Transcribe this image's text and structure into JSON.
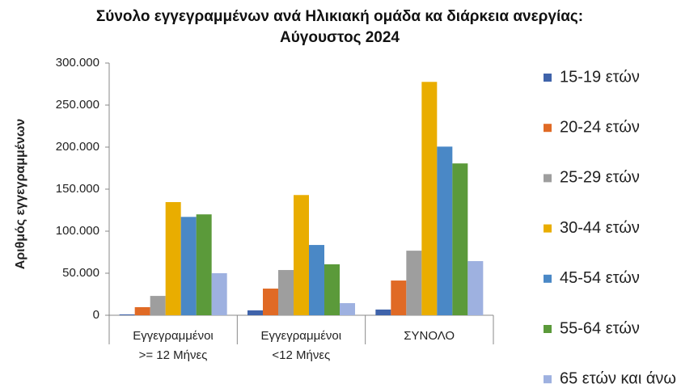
{
  "chart_data": {
    "type": "bar",
    "title": "Σύνολο εγγεγραμμένων  ανά Ηλικιακή ομάδα κα διάρκεια ανεργίας:\nΑύγουστος  2024",
    "y_label": "Αριθμός εγγεγραμμένων",
    "categories": [
      "Εγγεγραμμένοι\n>= 12 Μήνες",
      "Εγγεγραμμένοι\n<12 Μήνες",
      "ΣΥΝΟΛΟ"
    ],
    "series": [
      {
        "name": "15-19 ετών",
        "color": "#3f63aa",
        "values": [
          1000,
          5800,
          6800
        ]
      },
      {
        "name": "20-24 ετών",
        "color": "#e06a25",
        "values": [
          9600,
          31700,
          41300
        ]
      },
      {
        "name": "25-29 ετών",
        "color": "#9e9e9e",
        "values": [
          23000,
          53800,
          76800
        ]
      },
      {
        "name": "30-44 ετών",
        "color": "#e9ad00",
        "values": [
          134600,
          143000,
          277600
        ]
      },
      {
        "name": "45-54 ετών",
        "color": "#4a88c6",
        "values": [
          117000,
          83600,
          200600
        ]
      },
      {
        "name": "55-64 ετών",
        "color": "#5b9a3a",
        "values": [
          120000,
          60600,
          180600
        ]
      },
      {
        "name": "65 ετών και άνω",
        "color": "#9eb1e0",
        "values": [
          50000,
          14400,
          64400
        ]
      }
    ],
    "ylim": [
      0,
      300000
    ],
    "yticks": [
      0,
      {
        "value": 50000,
        "label": "50.000"
      },
      {
        "value": 100000,
        "label": "100.000"
      },
      {
        "value": 150000,
        "label": "150.000"
      },
      {
        "value": 200000,
        "label": "200.000"
      },
      {
        "value": 250000,
        "label": "250.000"
      },
      {
        "value": 300000,
        "label": "300.000"
      }
    ],
    "legend": "right"
  }
}
